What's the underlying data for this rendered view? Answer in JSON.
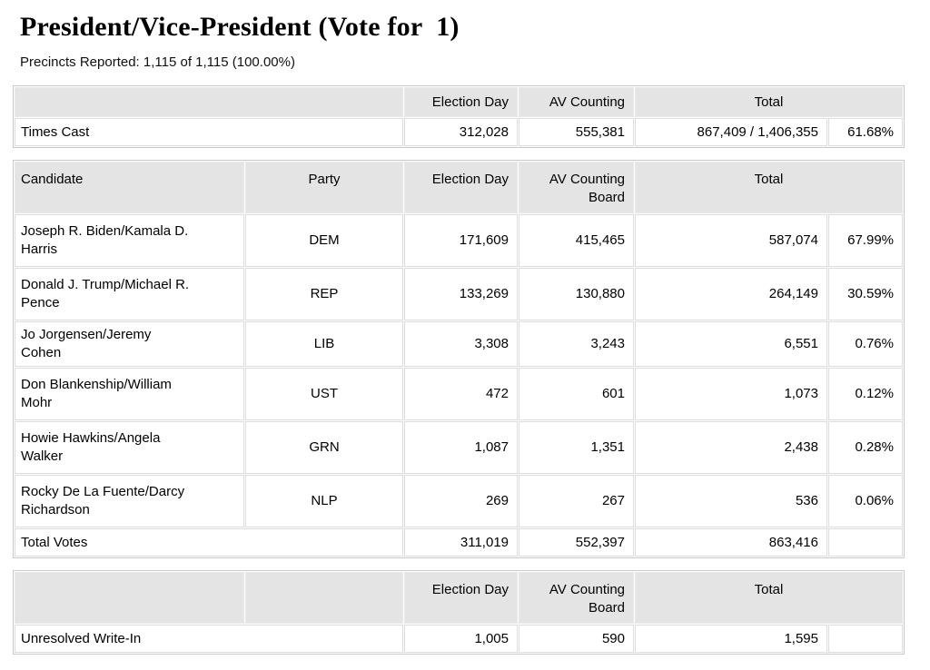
{
  "page": {
    "title": "President/Vice-President (Vote for  1)",
    "precincts_reported": "Precincts Reported: 1,115 of 1,115 (100.00%)"
  },
  "colors": {
    "header_bg": "#e4e4e4",
    "table_border": "#c9c9c9",
    "cell_border": "#dcdcdc",
    "text": "#000000"
  },
  "times_cast_table": {
    "headers": {
      "election_day": "Election Day",
      "av_counting": "AV Counting",
      "total": "Total"
    },
    "row": {
      "label": "Times Cast",
      "election_day": "312,028",
      "av_counting": "555,381",
      "total": "867,409 / 1,406,355",
      "percent": "61.68%"
    }
  },
  "results_table": {
    "headers": {
      "candidate": "Candidate",
      "party": "Party",
      "election_day": "Election Day",
      "av_counting_board": "AV Counting Board",
      "total": "Total"
    },
    "rows": [
      {
        "candidate": "Joseph R. Biden/Kamala D. Harris",
        "party": "DEM",
        "election_day": "171,609",
        "av_counting_board": "415,465",
        "total": "587,074",
        "percent": "67.99%"
      },
      {
        "candidate": "Donald J. Trump/Michael R. Pence",
        "party": "REP",
        "election_day": "133,269",
        "av_counting_board": "130,880",
        "total": "264,149",
        "percent": "30.59%"
      },
      {
        "candidate": "Jo Jorgensen/Jeremy Cohen",
        "party": "LIB",
        "election_day": "3,308",
        "av_counting_board": "3,243",
        "total": "6,551",
        "percent": "0.76%"
      },
      {
        "candidate": "Don Blankenship/William Mohr",
        "party": "UST",
        "election_day": "472",
        "av_counting_board": "601",
        "total": "1,073",
        "percent": "0.12%"
      },
      {
        "candidate": "Howie Hawkins/Angela Walker",
        "party": "GRN",
        "election_day": "1,087",
        "av_counting_board": "1,351",
        "total": "2,438",
        "percent": "0.28%"
      },
      {
        "candidate": "Rocky De La Fuente/Darcy Richardson",
        "party": "NLP",
        "election_day": "269",
        "av_counting_board": "267",
        "total": "536",
        "percent": "0.06%"
      }
    ],
    "total_row": {
      "label": "Total Votes",
      "election_day": "311,019",
      "av_counting_board": "552,397",
      "total": "863,416",
      "percent": ""
    }
  },
  "write_in_table": {
    "headers": {
      "election_day": "Election Day",
      "av_counting_board": "AV Counting Board",
      "total": "Total"
    },
    "row": {
      "label": "Unresolved Write-In",
      "election_day": "1,005",
      "av_counting_board": "590",
      "total": "1,595",
      "percent": ""
    }
  }
}
